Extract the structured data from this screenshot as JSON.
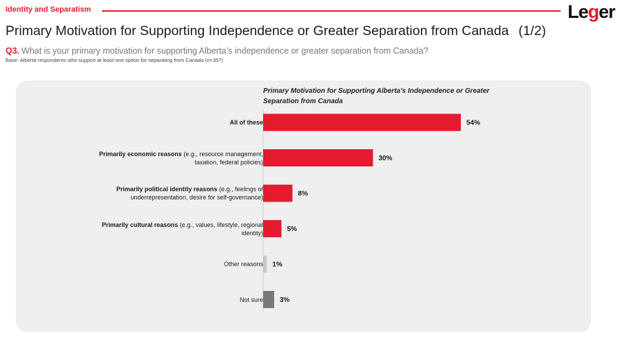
{
  "header": {
    "section": "Identity and Separatism",
    "logo_text": "Le",
    "logo_accent": "g",
    "logo_tail": "er",
    "title": "Primary Motivation for Supporting Independence or Greater Separation from Canada",
    "pager": "(1/2)"
  },
  "question": {
    "number": "Q3.",
    "text": "What is your primary motivation for supporting Alberta’s independence or greater separation from Canada?",
    "base": "Base: Alberta respondents who support at least one option for separating from Canada (n=357)"
  },
  "colors": {
    "accent": "#e31b2e",
    "other": "#c8c8c8",
    "not_sure": "#7a7a7a",
    "panel": "#efefef"
  },
  "chart_data": {
    "type": "bar",
    "orientation": "horizontal",
    "title": "Primary Motivation for Supporting Alberta’s Independence or Greater Separation from Canada",
    "categories": [
      {
        "bold": "All of these",
        "rest": ""
      },
      {
        "bold": "Primarily economic reasons",
        "rest": " (e.g., resource management, taxation, federal policies)"
      },
      {
        "bold": "Primarily political identity reasons",
        "rest": " (e.g., feelings of underrepresentation, desire for self-governance)"
      },
      {
        "bold": "Primarily cultural reasons",
        "rest": " (e.g., values, lifestyle, regional identity)"
      },
      {
        "bold": "",
        "rest": "Other reasons"
      },
      {
        "bold": "",
        "rest": "Not sure"
      }
    ],
    "values": [
      54,
      30,
      8,
      5,
      1,
      3
    ],
    "value_labels": [
      "54%",
      "30%",
      "8%",
      "5%",
      "1%",
      "3%"
    ],
    "bar_colors": [
      "#e31b2e",
      "#e31b2e",
      "#e31b2e",
      "#e31b2e",
      "#c8c8c8",
      "#7a7a7a"
    ],
    "xlim": [
      0,
      60
    ],
    "grid": false
  }
}
